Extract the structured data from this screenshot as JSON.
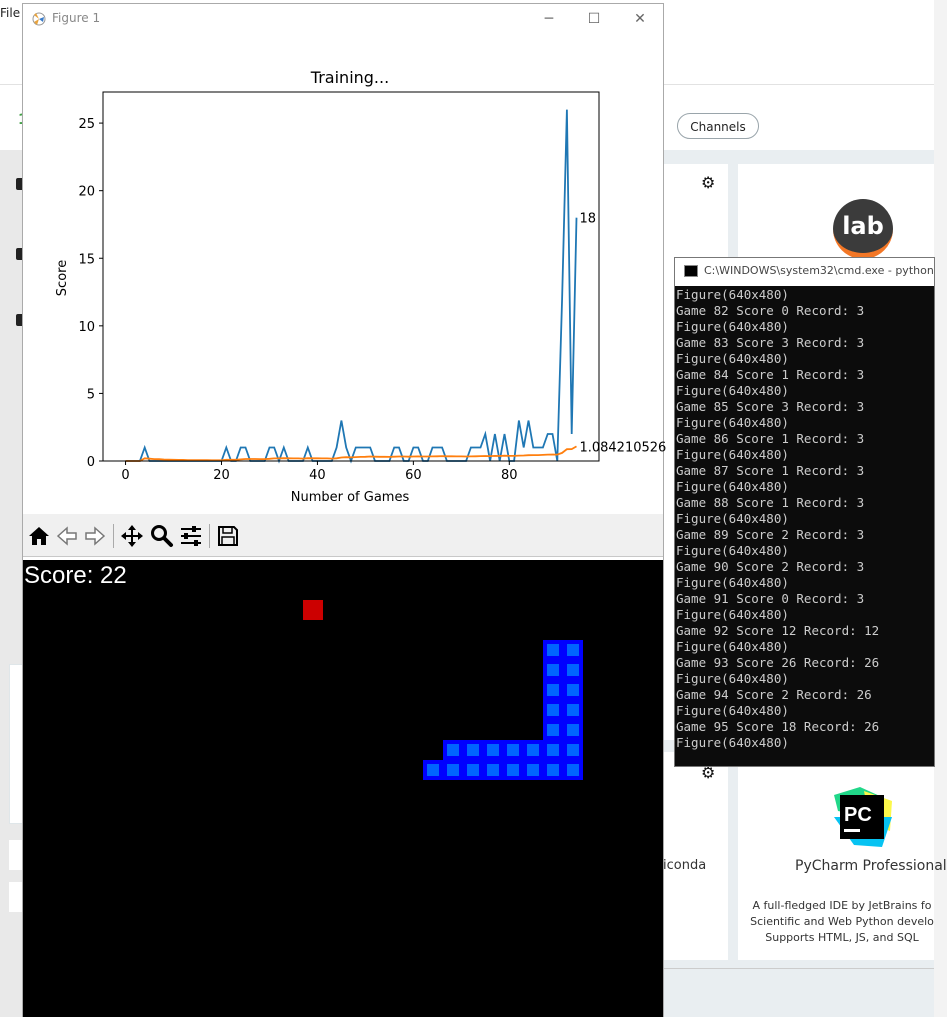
{
  "background": {
    "menu_file": "File",
    "channels_label": "Channels",
    "lab_label": "lab",
    "pycharm_logo_text": "PC",
    "pycharm_title": "PyCharm Professional",
    "pycharm_desc_1": "A full-fledged IDE by JetBrains fo",
    "pycharm_desc_2": "Scientific and Web Python develo",
    "pycharm_desc_3": "Supports HTML, JS, and SQL",
    "frag_conda": "iconda",
    "green_char": "1"
  },
  "figure": {
    "title": "Figure 1",
    "minimize": "─",
    "maximize": "☐",
    "close": "✕",
    "toolbar": {
      "home": "home-icon",
      "back": "back-arrow-icon",
      "forward": "forward-arrow-icon",
      "pan": "pan-icon",
      "zoom": "zoom-icon",
      "configure": "configure-subplots-icon",
      "save": "save-icon"
    }
  },
  "chart_data": {
    "type": "line",
    "title": "Training...",
    "xlabel": "Number of Games",
    "ylabel": "Score",
    "xlim": [
      -4.7,
      98.7
    ],
    "ylim": [
      0,
      27.3
    ],
    "xticks": [
      0,
      20,
      40,
      60,
      80
    ],
    "yticks": [
      0,
      5,
      10,
      15,
      20,
      25
    ],
    "grid": false,
    "series": [
      {
        "color": "#1f77b4",
        "values": [
          0,
          0,
          0,
          0,
          1,
          0,
          0,
          0,
          0,
          0,
          0,
          0,
          0,
          0,
          0,
          0,
          0,
          0,
          0,
          0,
          0,
          1,
          0,
          0,
          1,
          1,
          0,
          0,
          0,
          0,
          1,
          1,
          0,
          1,
          0,
          0,
          0,
          0,
          1,
          0,
          0,
          0,
          0,
          0,
          1,
          3,
          1,
          0,
          1,
          1,
          1,
          1,
          0,
          0,
          0,
          0,
          1,
          1,
          0,
          0,
          1,
          1,
          0,
          0,
          1,
          1,
          1,
          0,
          0,
          0,
          0,
          0,
          1,
          1,
          1,
          2,
          0,
          2,
          0,
          2,
          0,
          0,
          3,
          1,
          3,
          1,
          1,
          1,
          2,
          2,
          0,
          12,
          26,
          2,
          18
        ],
        "end_label": "18"
      },
      {
        "color": "#ff7f0e",
        "values": [
          0,
          0,
          0,
          0,
          0.2,
          0.17,
          0.14,
          0.13,
          0.11,
          0.1,
          0.09,
          0.08,
          0.08,
          0.07,
          0.07,
          0.06,
          0.06,
          0.06,
          0.05,
          0.05,
          0.05,
          0.09,
          0.09,
          0.09,
          0.12,
          0.15,
          0.15,
          0.15,
          0.14,
          0.14,
          0.16,
          0.19,
          0.19,
          0.21,
          0.2,
          0.19,
          0.19,
          0.18,
          0.21,
          0.2,
          0.2,
          0.19,
          0.19,
          0.18,
          0.2,
          0.26,
          0.28,
          0.27,
          0.29,
          0.3,
          0.31,
          0.33,
          0.32,
          0.31,
          0.31,
          0.3,
          0.32,
          0.33,
          0.33,
          0.32,
          0.33,
          0.34,
          0.33,
          0.33,
          0.34,
          0.35,
          0.36,
          0.35,
          0.35,
          0.34,
          0.34,
          0.33,
          0.34,
          0.35,
          0.36,
          0.37,
          0.36,
          0.38,
          0.37,
          0.39,
          0.38,
          0.38,
          0.4,
          0.41,
          0.43,
          0.44,
          0.44,
          0.45,
          0.47,
          0.48,
          0.47,
          0.6,
          0.87,
          0.88,
          1.08
        ],
        "end_label": "1.084210526"
      }
    ]
  },
  "game": {
    "score_text": "Score: 22",
    "food_color": "#cc0000",
    "snake_outer_color": "#0000ff",
    "snake_inner_color": "#0064ff",
    "food": {
      "col": 14,
      "row": 2
    },
    "snake_cells": [
      {
        "col": 26,
        "row": 4
      },
      {
        "col": 27,
        "row": 4
      },
      {
        "col": 26,
        "row": 5
      },
      {
        "col": 27,
        "row": 5
      },
      {
        "col": 26,
        "row": 6
      },
      {
        "col": 27,
        "row": 6
      },
      {
        "col": 26,
        "row": 7
      },
      {
        "col": 27,
        "row": 7
      },
      {
        "col": 26,
        "row": 8
      },
      {
        "col": 27,
        "row": 8
      },
      {
        "col": 21,
        "row": 9
      },
      {
        "col": 22,
        "row": 9
      },
      {
        "col": 23,
        "row": 9
      },
      {
        "col": 24,
        "row": 9
      },
      {
        "col": 25,
        "row": 9
      },
      {
        "col": 26,
        "row": 9
      },
      {
        "col": 27,
        "row": 9
      },
      {
        "col": 20,
        "row": 10
      },
      {
        "col": 21,
        "row": 10
      },
      {
        "col": 22,
        "row": 10
      },
      {
        "col": 23,
        "row": 10
      },
      {
        "col": 24,
        "row": 10
      },
      {
        "col": 25,
        "row": 10
      },
      {
        "col": 26,
        "row": 10
      },
      {
        "col": 27,
        "row": 10
      }
    ]
  },
  "cmd": {
    "title": "C:\\WINDOWS\\system32\\cmd.exe - python",
    "lines": [
      "Figure(640x480)",
      "Game 82 Score 0 Record: 3",
      "Figure(640x480)",
      "Game 83 Score 3 Record: 3",
      "Figure(640x480)",
      "Game 84 Score 1 Record: 3",
      "Figure(640x480)",
      "Game 85 Score 3 Record: 3",
      "Figure(640x480)",
      "Game 86 Score 1 Record: 3",
      "Figure(640x480)",
      "Game 87 Score 1 Record: 3",
      "Figure(640x480)",
      "Game 88 Score 1 Record: 3",
      "Figure(640x480)",
      "Game 89 Score 2 Record: 3",
      "Figure(640x480)",
      "Game 90 Score 2 Record: 3",
      "Figure(640x480)",
      "Game 91 Score 0 Record: 3",
      "Figure(640x480)",
      "Game 92 Score 12 Record: 12",
      "Figure(640x480)",
      "Game 93 Score 26 Record: 26",
      "Figure(640x480)",
      "Game 94 Score 2 Record: 26",
      "Figure(640x480)",
      "Game 95 Score 18 Record: 26",
      "Figure(640x480)"
    ]
  }
}
